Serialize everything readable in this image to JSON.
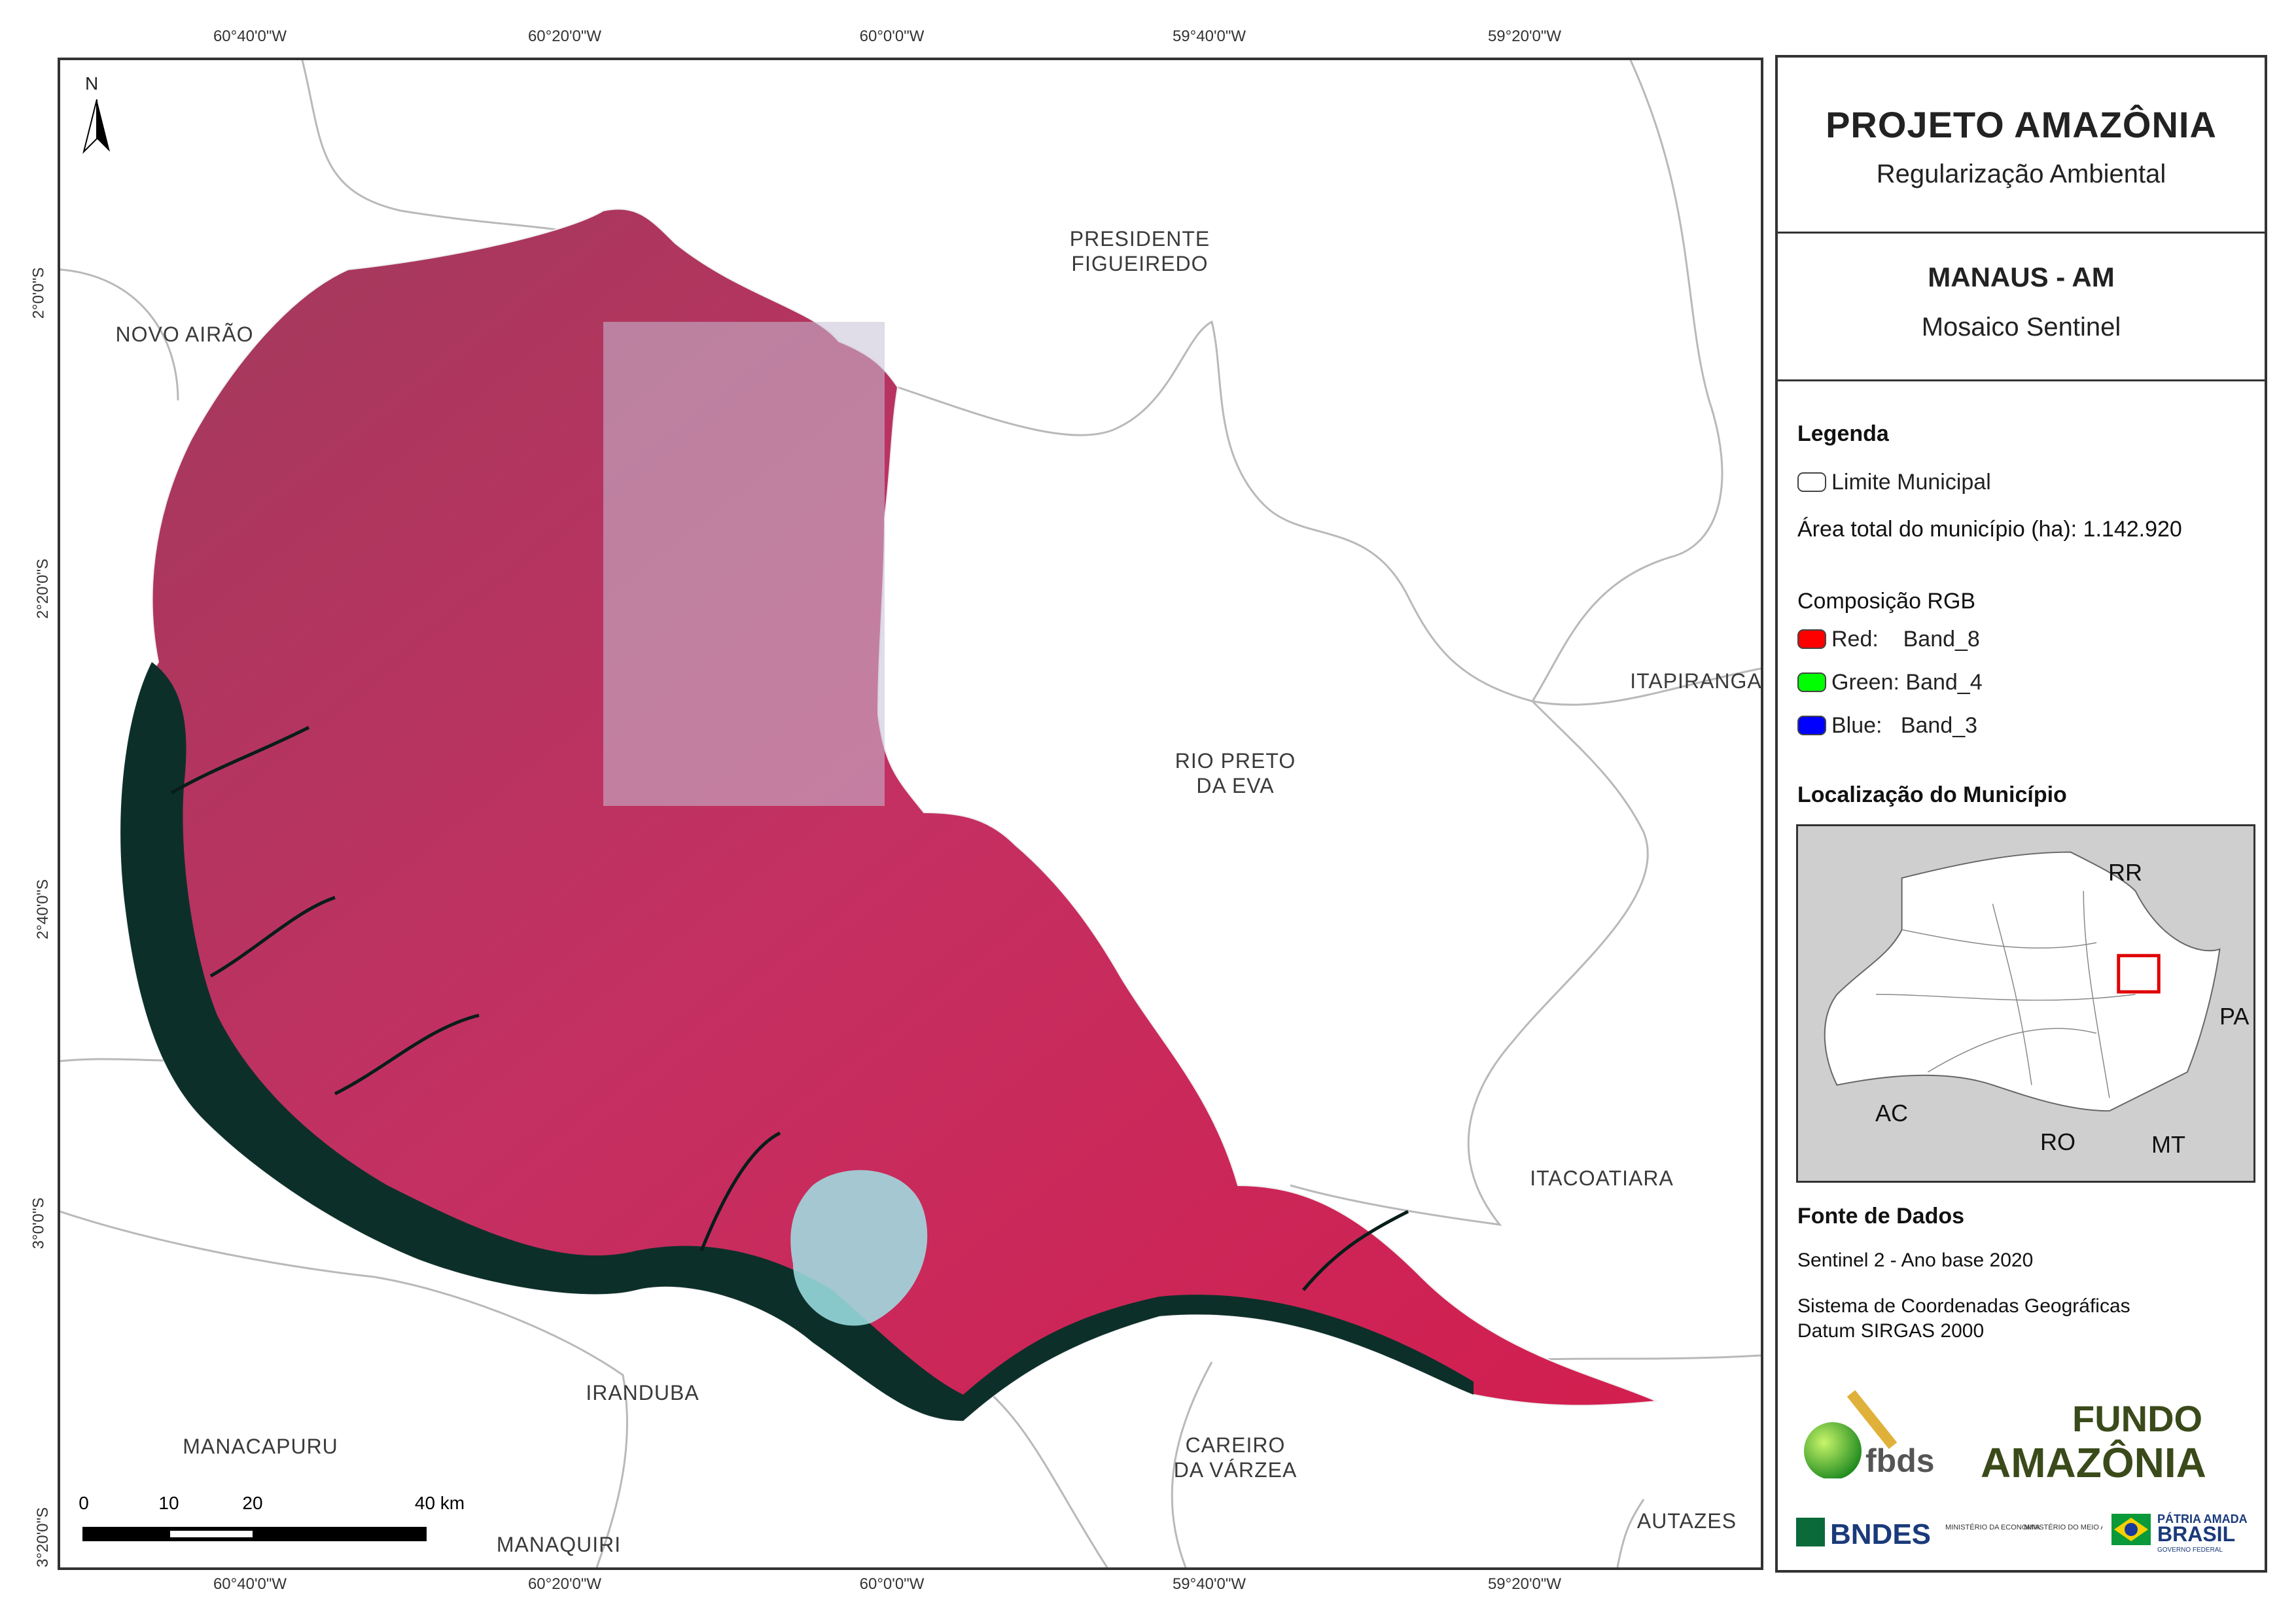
{
  "header": {
    "project_title": "PROJETO AMAZÔNIA",
    "project_subtitle": "Regularização Ambiental",
    "municipality_title": "MANAUS - AM",
    "municipality_subtitle": "Mosaico Sentinel"
  },
  "legend": {
    "title": "Legenda",
    "boundary_label": "Limite Municipal",
    "area_label": "Área total do município (ha): 1.142.920",
    "rgb_title": "Composição RGB",
    "bands": [
      {
        "label": "Red:    Band_8",
        "color": "#ff0000"
      },
      {
        "label": "Green: Band_4",
        "color": "#00ff00"
      },
      {
        "label": "Blue:   Band_3",
        "color": "#0000ff"
      }
    ]
  },
  "location": {
    "title": "Localização do Município",
    "states": [
      "RR",
      "PA",
      "AC",
      "RO",
      "MT"
    ],
    "highlight_color": "#e00000"
  },
  "sources": {
    "title": "Fonte de Dados",
    "line1": "Sentinel 2 - Ano base 2020",
    "line2": "Sistema de Coordenadas Geográficas",
    "line3": "Datum SIRGAS 2000"
  },
  "logos": {
    "fbds": "fbds",
    "fundo_line1": "FUNDO",
    "fundo_line2": "AMAZÔNIA",
    "bndes": "BNDES",
    "ministry1": "MINISTÉRIO DA ECONOMIA",
    "ministry2": "MINISTÉRIO DO MEIO AMBIENTE",
    "brasil_line1": "PÁTRIA AMADA",
    "brasil_line2": "BRASIL",
    "brasil_line3": "GOVERNO FEDERAL"
  },
  "map": {
    "north": "N",
    "longitudes": [
      "60°40'0\"W",
      "60°20'0\"W",
      "60°0'0\"W",
      "59°40'0\"W",
      "59°20'0\"W"
    ],
    "latitudes": [
      "2°0'0\"S",
      "2°20'0\"S",
      "2°40'0\"S",
      "3°0'0\"S",
      "3°20'0\"S"
    ],
    "places": [
      "NOVO AIRÃO",
      "PRESIDENTE\nFIGUEIREDO",
      "ITAPIRANGA",
      "RIO PRETO\nDA EVA",
      "ITACOATIARA",
      "IRANDUBA",
      "MANACAPURU",
      "CAREIRO\nDA VÁRZEA",
      "MANAQUIRI",
      "AUTAZES"
    ],
    "scale_labels": [
      "0",
      "10",
      "20",
      "40 km"
    ],
    "colors": {
      "imagery": "#c8285a",
      "river": "#0d2f2a",
      "urban": "#9fe3e6"
    }
  }
}
